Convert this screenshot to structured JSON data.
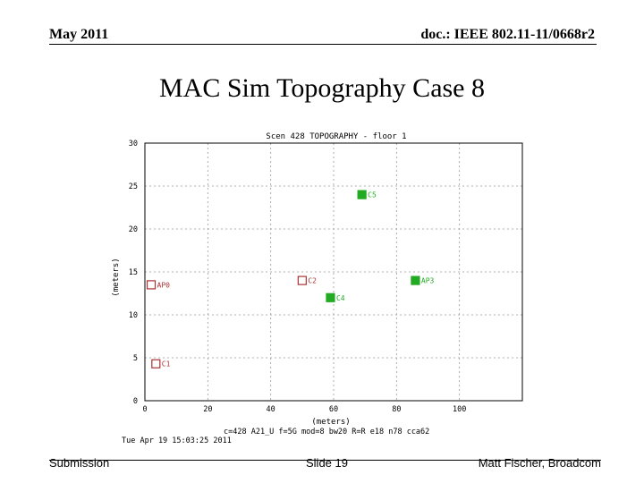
{
  "header": {
    "date": "May 2011",
    "doc": "doc.: IEEE 802.11-11/0668r2"
  },
  "slide_title": "MAC Sim Topography Case 8",
  "chart_data": {
    "type": "scatter",
    "title": "Scen 428 TOPOGRAPHY - floor 1",
    "xlabel": "(meters)",
    "ylabel": "(meters)",
    "xlim": [
      0,
      120
    ],
    "ylim": [
      0,
      30
    ],
    "xticks": [
      0,
      20,
      40,
      60,
      80,
      100
    ],
    "yticks": [
      0,
      5,
      10,
      15,
      20,
      25,
      30
    ],
    "grid": true,
    "points": [
      {
        "label": "AP0",
        "x": 2,
        "y": 13.5,
        "marker": "open-square",
        "color": "#aa3333"
      },
      {
        "label": "C1",
        "x": 3.5,
        "y": 4.3,
        "marker": "open-square",
        "color": "#aa3333"
      },
      {
        "label": "C2",
        "x": 50,
        "y": 14,
        "marker": "open-square",
        "color": "#aa3333"
      },
      {
        "label": "C4",
        "x": 59,
        "y": 12,
        "marker": "filled-square",
        "color": "#22aa22"
      },
      {
        "label": "C5",
        "x": 69,
        "y": 24,
        "marker": "filled-square",
        "color": "#22aa22"
      },
      {
        "label": "AP3",
        "x": 86,
        "y": 14,
        "marker": "filled-square",
        "color": "#22aa22"
      }
    ],
    "caption_params": "c=428 A21_U f=5G mod=8 bw20 R=R   e18 n78 cca62",
    "caption_time": "Tue Apr 19 15:03:25 2011"
  },
  "footer": {
    "left": "Submission",
    "middle": "Slide 19",
    "right": "Matt Fischer, Broadcom"
  }
}
